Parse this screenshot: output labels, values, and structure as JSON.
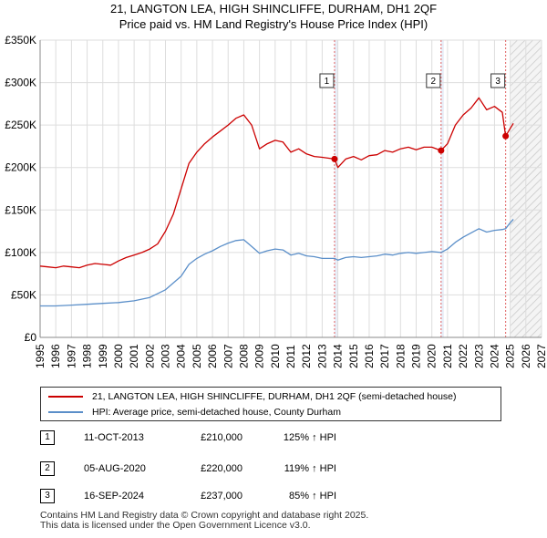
{
  "title_line1": "21, LANGTON LEA, HIGH SHINCLIFFE, DURHAM, DH1 2QF",
  "title_line2": "Price paid vs. HM Land Registry's House Price Index (HPI)",
  "colors": {
    "property": "#cc0000",
    "hpi": "#5b8fc9",
    "grid": "#dddddd",
    "vline": "#e06060",
    "shade": "#e8eef8"
  },
  "chart_data": {
    "type": "line",
    "xlim": [
      1995,
      2027
    ],
    "ylim": [
      0,
      350000
    ],
    "x_ticks": [
      "1995",
      "1996",
      "1997",
      "1998",
      "1999",
      "2000",
      "2001",
      "2002",
      "2003",
      "2004",
      "2005",
      "2006",
      "2007",
      "2008",
      "2009",
      "2010",
      "2011",
      "2012",
      "2013",
      "2014",
      "2015",
      "2016",
      "2017",
      "2018",
      "2019",
      "2020",
      "2021",
      "2022",
      "2023",
      "2024",
      "2025",
      "2026",
      "2027"
    ],
    "y_ticks": [
      {
        "value": 0,
        "label": "£0"
      },
      {
        "value": 50000,
        "label": "£50K"
      },
      {
        "value": 100000,
        "label": "£100K"
      },
      {
        "value": 150000,
        "label": "£150K"
      },
      {
        "value": 200000,
        "label": "£200K"
      },
      {
        "value": 250000,
        "label": "£250K"
      },
      {
        "value": 300000,
        "label": "£300K"
      },
      {
        "value": 350000,
        "label": "£350K"
      }
    ],
    "future_from": 2025.0,
    "series": [
      {
        "name": "21, LANGTON LEA, HIGH SHINCLIFFE, DURHAM, DH1 2QF (semi-detached house)",
        "color": "#cc0000",
        "points": [
          [
            1995.0,
            84000
          ],
          [
            1995.5,
            83000
          ],
          [
            1996.0,
            82000
          ],
          [
            1996.5,
            84000
          ],
          [
            1997.0,
            83000
          ],
          [
            1997.5,
            82000
          ],
          [
            1998.0,
            85000
          ],
          [
            1998.5,
            87000
          ],
          [
            1999.0,
            86000
          ],
          [
            1999.5,
            85000
          ],
          [
            2000.0,
            90000
          ],
          [
            2000.5,
            94000
          ],
          [
            2001.0,
            97000
          ],
          [
            2001.5,
            100000
          ],
          [
            2002.0,
            104000
          ],
          [
            2002.5,
            110000
          ],
          [
            2003.0,
            125000
          ],
          [
            2003.5,
            145000
          ],
          [
            2004.0,
            175000
          ],
          [
            2004.5,
            205000
          ],
          [
            2005.0,
            218000
          ],
          [
            2005.5,
            228000
          ],
          [
            2006.0,
            236000
          ],
          [
            2006.5,
            243000
          ],
          [
            2007.0,
            250000
          ],
          [
            2007.5,
            258000
          ],
          [
            2008.0,
            262000
          ],
          [
            2008.5,
            250000
          ],
          [
            2009.0,
            222000
          ],
          [
            2009.5,
            228000
          ],
          [
            2010.0,
            232000
          ],
          [
            2010.5,
            230000
          ],
          [
            2011.0,
            218000
          ],
          [
            2011.5,
            222000
          ],
          [
            2012.0,
            216000
          ],
          [
            2012.5,
            213000
          ],
          [
            2013.0,
            212000
          ],
          [
            2013.79,
            210000
          ],
          [
            2014.0,
            200000
          ],
          [
            2014.5,
            210000
          ],
          [
            2015.0,
            213000
          ],
          [
            2015.5,
            209000
          ],
          [
            2016.0,
            214000
          ],
          [
            2016.5,
            215000
          ],
          [
            2017.0,
            220000
          ],
          [
            2017.5,
            218000
          ],
          [
            2018.0,
            222000
          ],
          [
            2018.5,
            224000
          ],
          [
            2019.0,
            221000
          ],
          [
            2019.5,
            224000
          ],
          [
            2020.0,
            224000
          ],
          [
            2020.59,
            220000
          ],
          [
            2021.0,
            228000
          ],
          [
            2021.5,
            250000
          ],
          [
            2022.0,
            262000
          ],
          [
            2022.5,
            270000
          ],
          [
            2023.0,
            282000
          ],
          [
            2023.5,
            268000
          ],
          [
            2024.0,
            272000
          ],
          [
            2024.5,
            265000
          ],
          [
            2024.71,
            237000
          ],
          [
            2025.0,
            246000
          ],
          [
            2025.2,
            252000
          ]
        ]
      },
      {
        "name": "HPI: Average price, semi-detached house, County Durham",
        "color": "#5b8fc9",
        "points": [
          [
            1995.0,
            37000
          ],
          [
            1996.0,
            37000
          ],
          [
            1997.0,
            38000
          ],
          [
            1998.0,
            39000
          ],
          [
            1999.0,
            40000
          ],
          [
            2000.0,
            41000
          ],
          [
            2001.0,
            43000
          ],
          [
            2002.0,
            47000
          ],
          [
            2003.0,
            56000
          ],
          [
            2004.0,
            72000
          ],
          [
            2004.5,
            86000
          ],
          [
            2005.0,
            93000
          ],
          [
            2005.5,
            98000
          ],
          [
            2006.0,
            102000
          ],
          [
            2006.5,
            107000
          ],
          [
            2007.0,
            111000
          ],
          [
            2007.5,
            114000
          ],
          [
            2008.0,
            115000
          ],
          [
            2008.5,
            107000
          ],
          [
            2009.0,
            99000
          ],
          [
            2009.5,
            102000
          ],
          [
            2010.0,
            104000
          ],
          [
            2010.5,
            103000
          ],
          [
            2011.0,
            97000
          ],
          [
            2011.5,
            99000
          ],
          [
            2012.0,
            96000
          ],
          [
            2012.5,
            95000
          ],
          [
            2013.0,
            93000
          ],
          [
            2013.79,
            93000
          ],
          [
            2014.0,
            91000
          ],
          [
            2014.5,
            94000
          ],
          [
            2015.0,
            95000
          ],
          [
            2015.5,
            94000
          ],
          [
            2016.0,
            95000
          ],
          [
            2016.5,
            96000
          ],
          [
            2017.0,
            98000
          ],
          [
            2017.5,
            97000
          ],
          [
            2018.0,
            99000
          ],
          [
            2018.5,
            100000
          ],
          [
            2019.0,
            99000
          ],
          [
            2019.5,
            100000
          ],
          [
            2020.0,
            101000
          ],
          [
            2020.59,
            100000
          ],
          [
            2021.0,
            104000
          ],
          [
            2021.5,
            112000
          ],
          [
            2022.0,
            118000
          ],
          [
            2022.5,
            123000
          ],
          [
            2023.0,
            128000
          ],
          [
            2023.5,
            124000
          ],
          [
            2024.0,
            126000
          ],
          [
            2024.5,
            127000
          ],
          [
            2024.71,
            128000
          ],
          [
            2025.0,
            135000
          ],
          [
            2025.2,
            139000
          ]
        ]
      }
    ],
    "markers": [
      {
        "label": "1",
        "x": 2013.79,
        "value": 210000
      },
      {
        "label": "2",
        "x": 2020.59,
        "value": 220000
      },
      {
        "label": "3",
        "x": 2024.71,
        "value": 237000
      }
    ],
    "legend_position": "bottom"
  },
  "transactions": [
    {
      "num": "1",
      "date": "11-OCT-2013",
      "price": "£210,000",
      "pct": "125% ↑ HPI"
    },
    {
      "num": "2",
      "date": "05-AUG-2020",
      "price": "£220,000",
      "pct": "119% ↑ HPI"
    },
    {
      "num": "3",
      "date": "16-SEP-2024",
      "price": "£237,000",
      "pct": "85% ↑ HPI"
    }
  ],
  "footer_line1": "Contains HM Land Registry data © Crown copyright and database right 2025.",
  "footer_line2": "This data is licensed under the Open Government Licence v3.0."
}
